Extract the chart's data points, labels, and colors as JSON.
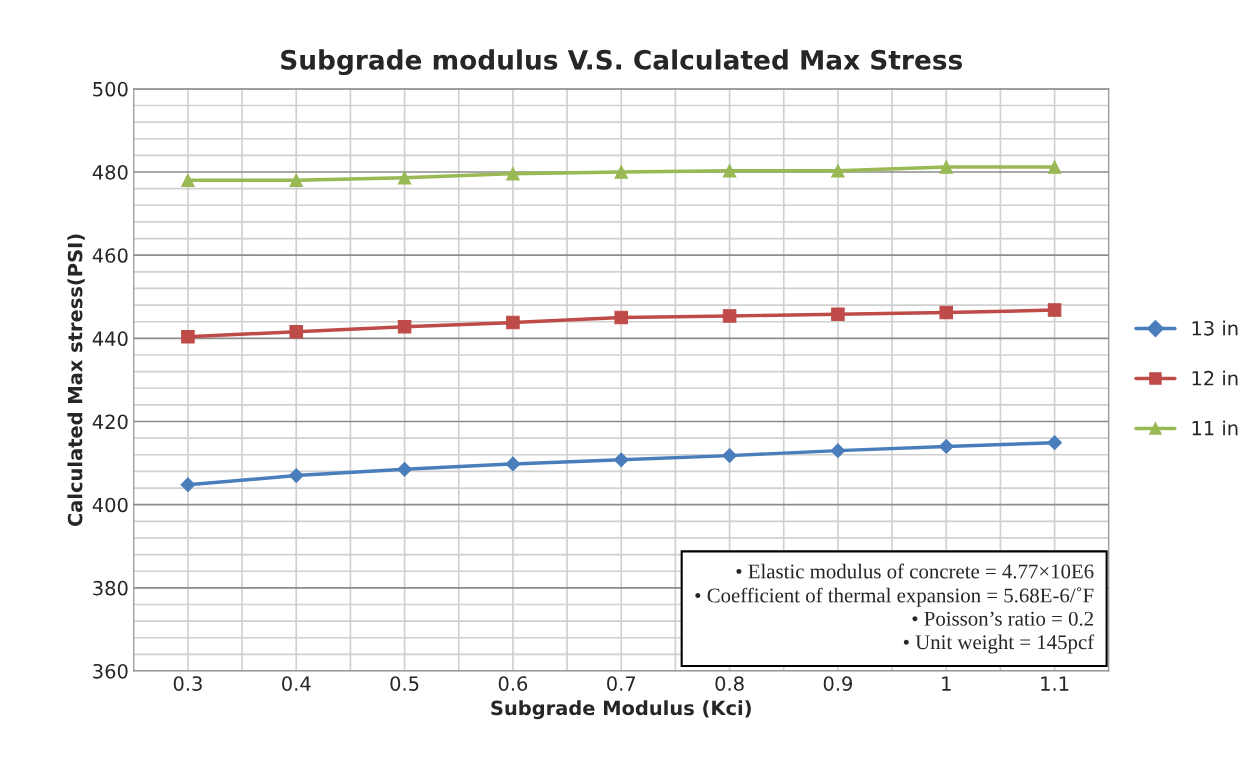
{
  "chart_data": {
    "type": "line",
    "title": "Subgrade modulus V.S. Calculated Max Stress",
    "xlabel": "Subgrade Modulus (Kci)",
    "ylabel": "Calculated Max stress(PSI)",
    "categories": [
      "0.3",
      "0.4",
      "0.5",
      "0.6",
      "0.7",
      "0.8",
      "0.9",
      "1",
      "1.1"
    ],
    "series": [
      {
        "name": "13 in",
        "color": "#4a7ebb",
        "marker": "diamond",
        "values": [
          404.8,
          407.0,
          408.5,
          409.8,
          410.8,
          411.8,
          413.0,
          414.0,
          414.9
        ]
      },
      {
        "name": "12 in",
        "color": "#be4b48",
        "marker": "square",
        "values": [
          440.4,
          441.6,
          442.8,
          443.8,
          445.0,
          445.4,
          445.8,
          446.2,
          446.8
        ]
      },
      {
        "name": "11 in",
        "color": "#98b954",
        "marker": "triangle",
        "values": [
          478.0,
          478.0,
          478.6,
          479.6,
          480.0,
          480.3,
          480.3,
          481.2,
          481.2
        ]
      }
    ],
    "ylim": [
      360,
      500
    ],
    "yticks": [
      360,
      {
        "value": 364,
        "label": null
      },
      {
        "value": 368,
        "label": null
      },
      {
        "value": 372,
        "label": null
      },
      {
        "value": 376,
        "label": null
      },
      380,
      {
        "value": 384,
        "label": null
      },
      {
        "value": 388,
        "label": null
      },
      {
        "value": 392,
        "label": null
      },
      {
        "value": 396,
        "label": null
      },
      400,
      {
        "value": 404,
        "label": null
      },
      {
        "value": 408,
        "label": null
      },
      {
        "value": 412,
        "label": null
      },
      {
        "value": 416,
        "label": null
      },
      420,
      {
        "value": 424,
        "label": null
      },
      {
        "value": 428,
        "label": null
      },
      {
        "value": 432,
        "label": null
      },
      {
        "value": 436,
        "label": null
      },
      440,
      {
        "value": 444,
        "label": null
      },
      {
        "value": 448,
        "label": null
      },
      {
        "value": 452,
        "label": null
      },
      {
        "value": 456,
        "label": null
      },
      460,
      {
        "value": 464,
        "label": null
      },
      {
        "value": 468,
        "label": null
      },
      {
        "value": 472,
        "label": null
      },
      {
        "value": 476,
        "label": null
      },
      480,
      {
        "value": 484,
        "label": null
      },
      {
        "value": 488,
        "label": null
      },
      {
        "value": 492,
        "label": null
      },
      {
        "value": 496,
        "label": null
      },
      500
    ],
    "grid": true,
    "legend": "right",
    "annotations": [
      "• Elastic modulus of concrete = 4.77×10E6\n• Coefficient of thermal expansion = 5.68E-6/˚F\n• Poisson’s ratio = 0.2\n• Unit weight = 145pcf"
    ]
  }
}
